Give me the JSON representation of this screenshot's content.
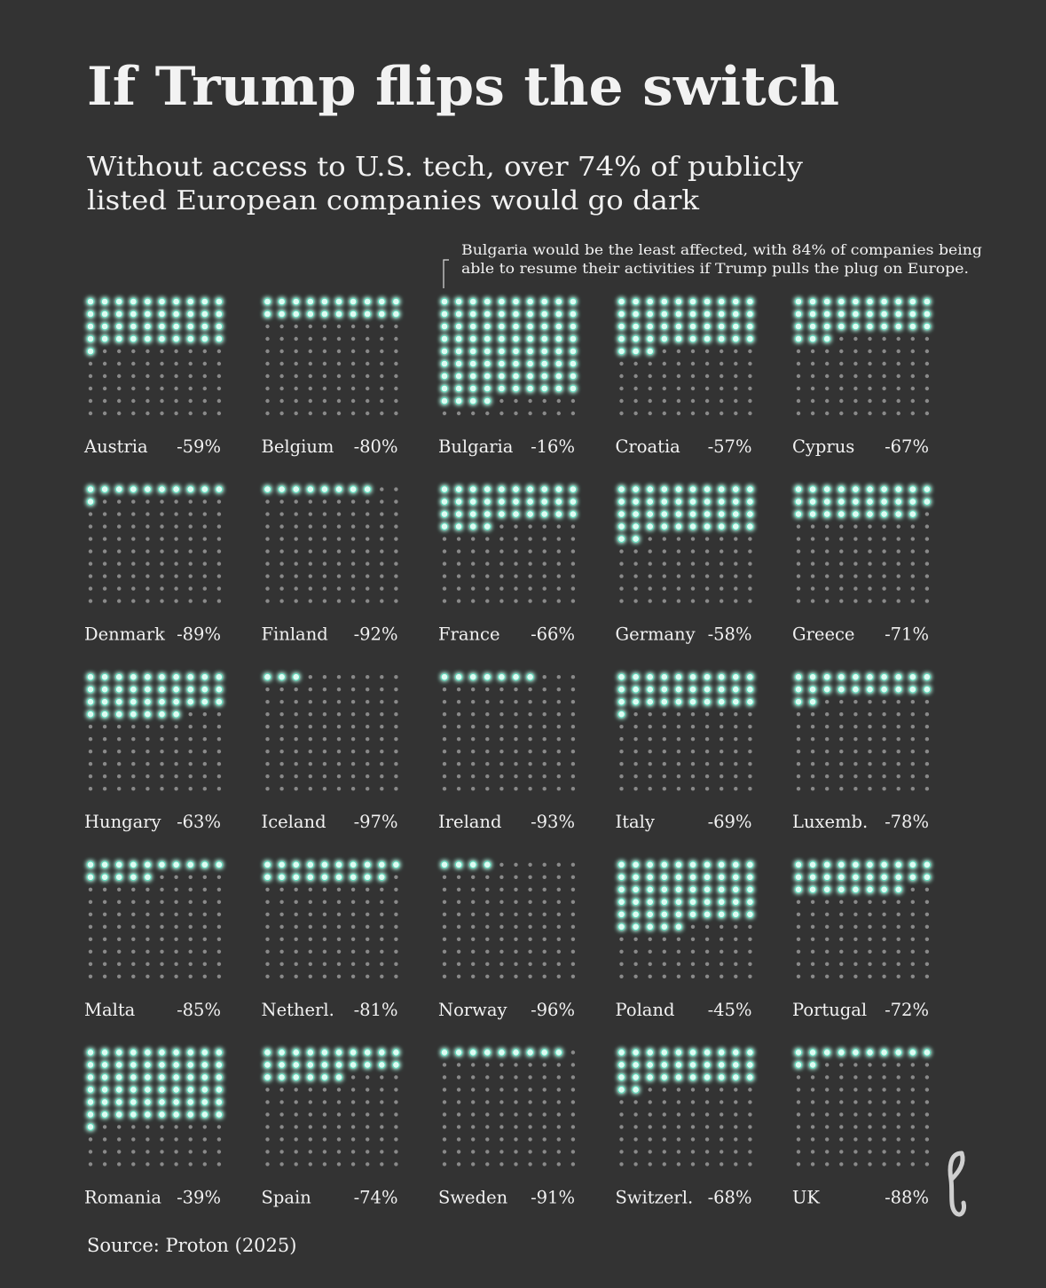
{
  "chart_data": {
    "type": "waffle",
    "title": "If Trump flips the switch",
    "subtitle": [
      "Without access to U.S. tech, over 74% of publicly",
      "listed European companies would go dark"
    ],
    "annotation": [
      "Bulgaria would be the least affected, with 84% of companies being",
      "able to resume their activities if Trump pulls the plug on Europe."
    ],
    "source": "Source: Proton (2025)",
    "lit_color": "#dffcf3",
    "glow_color": "#5fd6b8",
    "dim_color": "#8a8a8a",
    "categories": [
      "Austria",
      "Belgium",
      "Bulgaria",
      "Croatia",
      "Cyprus",
      "Denmark",
      "Finland",
      "France",
      "Germany",
      "Greece",
      "Hungary",
      "Iceland",
      "Ireland",
      "Italy",
      "Luxemb.",
      "Malta",
      "Netherl.",
      "Norway",
      "Poland",
      "Portugal",
      "Romania",
      "Spain",
      "Sweden",
      "Switzerl.",
      "UK"
    ],
    "values": [
      -59,
      -80,
      -16,
      -57,
      -67,
      -89,
      -92,
      -66,
      -58,
      -71,
      -63,
      -97,
      -93,
      -69,
      -78,
      -85,
      -81,
      -96,
      -45,
      -72,
      -39,
      -74,
      -91,
      -68,
      -88
    ],
    "value_labels": [
      "-59%",
      "-80%",
      "-16%",
      "-57%",
      "-67%",
      "-89%",
      "-92%",
      "-66%",
      "-58%",
      "-71%",
      "-63%",
      "-97%",
      "-93%",
      "-69%",
      "-78%",
      "-85%",
      "-81%",
      "-96%",
      "-45%",
      "-72%",
      "-39%",
      "-74%",
      "-91%",
      "-68%",
      "-88%"
    ]
  }
}
